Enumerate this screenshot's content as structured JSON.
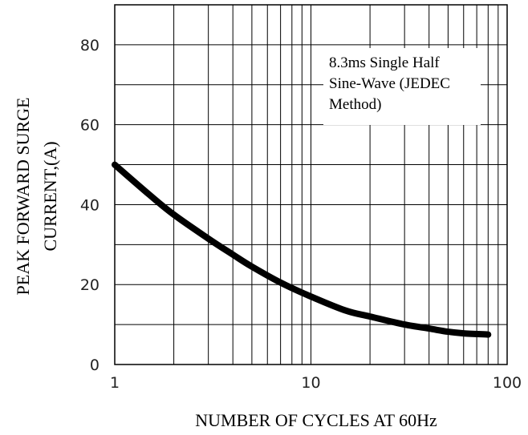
{
  "chart_data": {
    "type": "line",
    "xscale": "log",
    "xlim": [
      1,
      100
    ],
    "ylim": [
      0,
      90
    ],
    "grid": true,
    "xlabel": "NUMBER OF CYCLES AT 60Hz",
    "ylabel_lines": [
      "PEAK FORWARD SURGE",
      "CURRENT,(A)"
    ],
    "xticks": [
      {
        "value": 1,
        "label": "1"
      },
      {
        "value": 10,
        "label": "10"
      },
      {
        "value": 100,
        "label": "100"
      }
    ],
    "yticks": [
      {
        "value": 0,
        "label": "0"
      },
      {
        "value": 20,
        "label": "20"
      },
      {
        "value": 40,
        "label": "40"
      },
      {
        "value": 60,
        "label": "60"
      },
      {
        "value": 80,
        "label": "80"
      }
    ],
    "annotation_lines": [
      "8.3ms Single Half",
      "Sine-Wave (JEDEC",
      "Method)"
    ],
    "series": [
      {
        "color": "#000000",
        "x": [
          1,
          1.5,
          2,
          3,
          4,
          5,
          7,
          10,
          15,
          20,
          30,
          40,
          50,
          60,
          80
        ],
        "y": [
          50,
          42.5,
          37.5,
          31.5,
          27.5,
          24.5,
          20.5,
          17,
          13.5,
          12,
          10,
          9,
          8.2,
          7.8,
          7.5
        ]
      }
    ]
  }
}
